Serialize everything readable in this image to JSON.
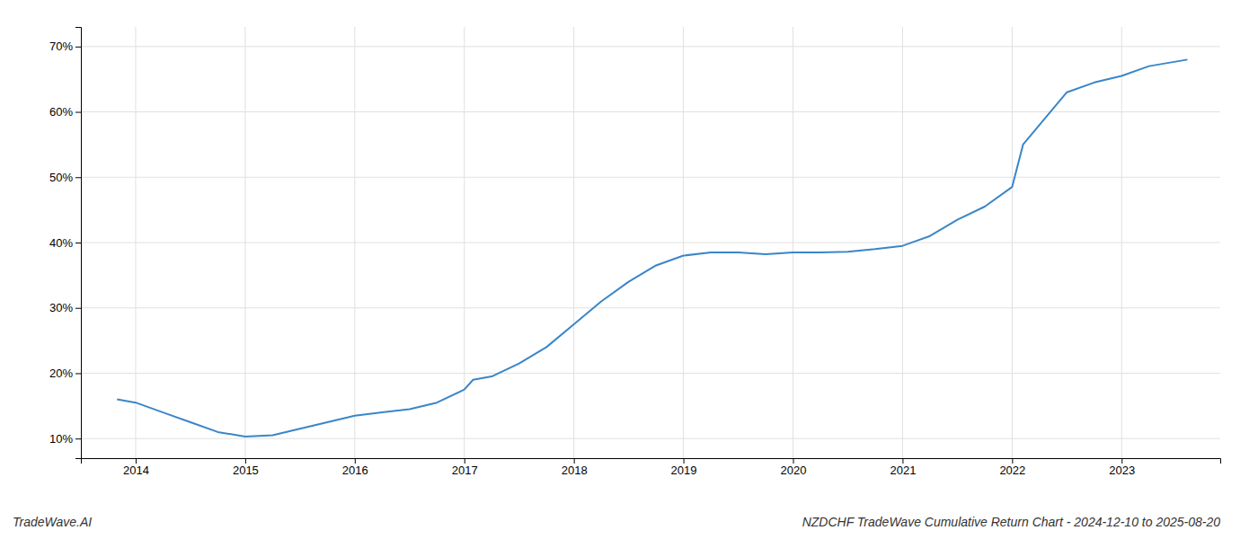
{
  "chart_data": {
    "type": "line",
    "title": "NZDCHF TradeWave Cumulative Return Chart - 2024-12-10 to 2025-08-20",
    "annotations": [
      "TradeWave.AI"
    ],
    "x": [
      2013.83,
      2014.0,
      2014.25,
      2014.5,
      2014.75,
      2015.0,
      2015.25,
      2015.5,
      2015.75,
      2016.0,
      2016.25,
      2016.5,
      2016.75,
      2017.0,
      2017.08,
      2017.25,
      2017.5,
      2017.75,
      2018.0,
      2018.25,
      2018.5,
      2018.75,
      2019.0,
      2019.25,
      2019.5,
      2019.75,
      2020.0,
      2020.25,
      2020.5,
      2020.75,
      2021.0,
      2021.25,
      2021.5,
      2021.75,
      2022.0,
      2022.1,
      2022.5,
      2022.75,
      2023.0,
      2023.25,
      2023.6
    ],
    "values": [
      16.0,
      15.5,
      14.0,
      12.5,
      11.0,
      10.3,
      10.5,
      11.5,
      12.5,
      13.5,
      14.0,
      14.5,
      15.5,
      17.5,
      19.0,
      19.5,
      21.5,
      24.0,
      27.5,
      31.0,
      34.0,
      36.5,
      38.0,
      38.5,
      38.5,
      38.2,
      38.5,
      38.5,
      38.6,
      39.0,
      39.5,
      41.0,
      43.5,
      45.5,
      48.5,
      55.0,
      63.0,
      64.5,
      65.5,
      67.0,
      68.0
    ],
    "color": "#3a86c8",
    "xlim": [
      2013.5,
      2023.9
    ],
    "ylim": [
      7,
      73
    ],
    "xticks": [
      2014,
      2015,
      2016,
      2017,
      2018,
      2019,
      2020,
      2021,
      2022,
      2023
    ],
    "yticks": [
      {
        "value": 10,
        "label": "10%"
      },
      {
        "value": 20,
        "label": "20%"
      },
      {
        "value": 30,
        "label": "30%"
      },
      {
        "value": 40,
        "label": "40%"
      },
      {
        "value": 50,
        "label": "50%"
      },
      {
        "value": 60,
        "label": "60%"
      },
      {
        "value": 70,
        "label": "70%"
      }
    ],
    "grid": true
  }
}
